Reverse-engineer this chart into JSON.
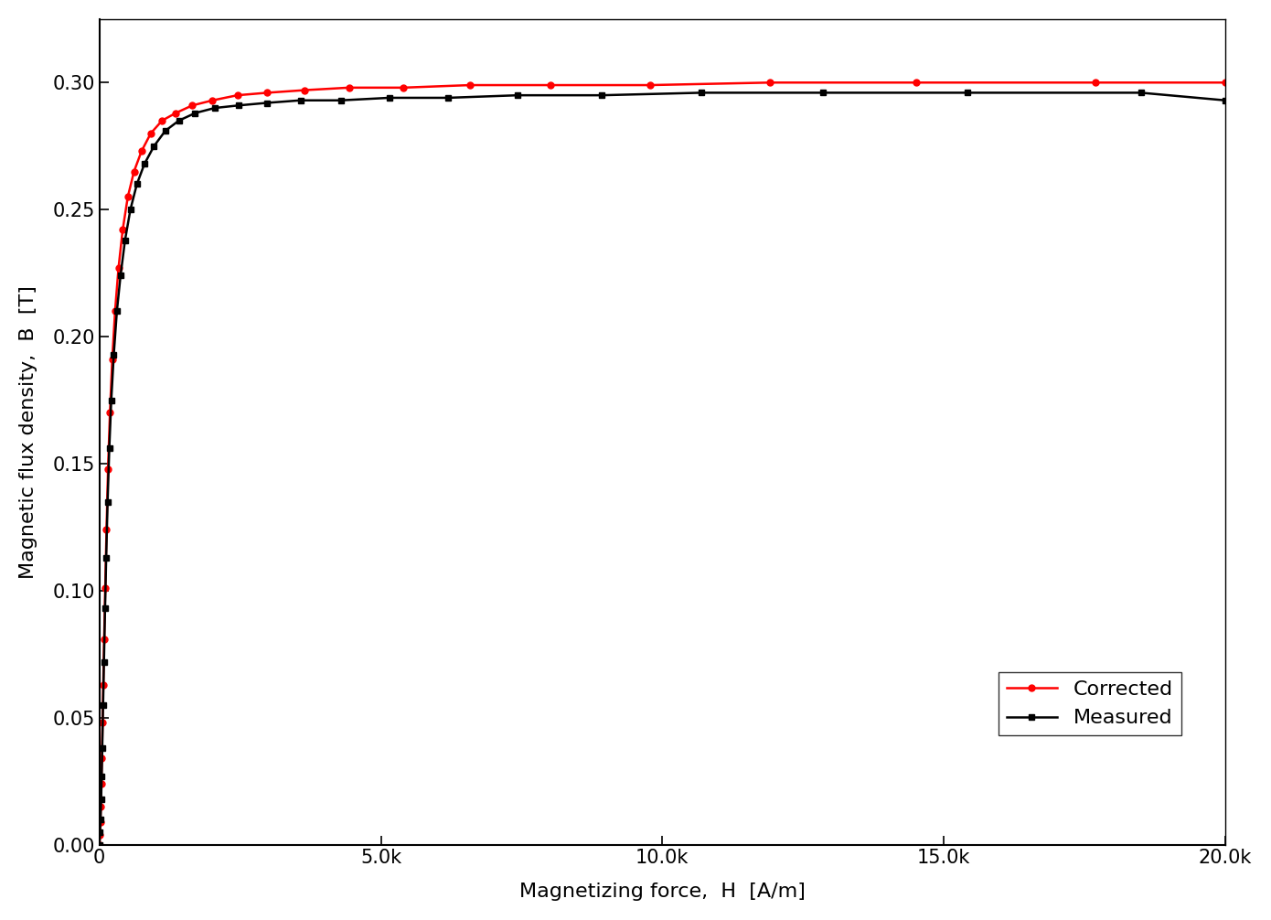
{
  "xlabel": "Magnetizing force,  H  [A/m]",
  "ylabel": "Magnetic flux density,  B  [T]",
  "xlim": [
    0,
    20000
  ],
  "ylim": [
    0.0,
    0.325
  ],
  "xticks": [
    0,
    5000,
    10000,
    15000,
    20000
  ],
  "xtick_labels": [
    "0",
    "5.0k",
    "10.0k",
    "15.0k",
    "20.0k"
  ],
  "yticks": [
    0.0,
    0.05,
    0.1,
    0.15,
    0.2,
    0.25,
    0.3
  ],
  "measured_H": [
    0,
    10,
    20,
    30,
    40,
    50,
    65,
    80,
    100,
    120,
    145,
    175,
    210,
    255,
    310,
    375,
    455,
    550,
    665,
    800,
    970,
    1170,
    1410,
    1700,
    2050,
    2470,
    2970,
    3570,
    4290,
    5150,
    6190,
    7430,
    8920,
    10700,
    12850,
    15420,
    18500,
    20000
  ],
  "measured_B": [
    0.0,
    0.005,
    0.01,
    0.018,
    0.027,
    0.038,
    0.055,
    0.072,
    0.093,
    0.113,
    0.135,
    0.156,
    0.175,
    0.193,
    0.21,
    0.224,
    0.238,
    0.25,
    0.26,
    0.268,
    0.275,
    0.281,
    0.285,
    0.288,
    0.29,
    0.291,
    0.292,
    0.293,
    0.293,
    0.294,
    0.294,
    0.295,
    0.295,
    0.296,
    0.296,
    0.296,
    0.296,
    0.293
  ],
  "corrected_H": [
    0,
    8,
    16,
    24,
    33,
    43,
    55,
    68,
    84,
    103,
    126,
    153,
    187,
    228,
    278,
    339,
    413,
    504,
    614,
    748,
    912,
    1111,
    1354,
    1650,
    2010,
    2449,
    2984,
    3637,
    4431,
    5399,
    6580,
    8020,
    9776,
    11913,
    14517,
    17697,
    20000
  ],
  "corrected_B": [
    0.0,
    0.004,
    0.009,
    0.015,
    0.024,
    0.034,
    0.048,
    0.063,
    0.081,
    0.101,
    0.124,
    0.148,
    0.17,
    0.191,
    0.21,
    0.227,
    0.242,
    0.255,
    0.265,
    0.273,
    0.28,
    0.285,
    0.288,
    0.291,
    0.293,
    0.295,
    0.296,
    0.297,
    0.298,
    0.298,
    0.299,
    0.299,
    0.299,
    0.3,
    0.3,
    0.3,
    0.3
  ],
  "measured_color": "#000000",
  "corrected_color": "#ff0000",
  "measured_marker": "s",
  "corrected_marker": "o",
  "line_width": 1.8,
  "marker_size": 5,
  "background_color": "#ffffff",
  "font_size": 16,
  "tick_font_size": 15,
  "legend_fontsize": 16
}
